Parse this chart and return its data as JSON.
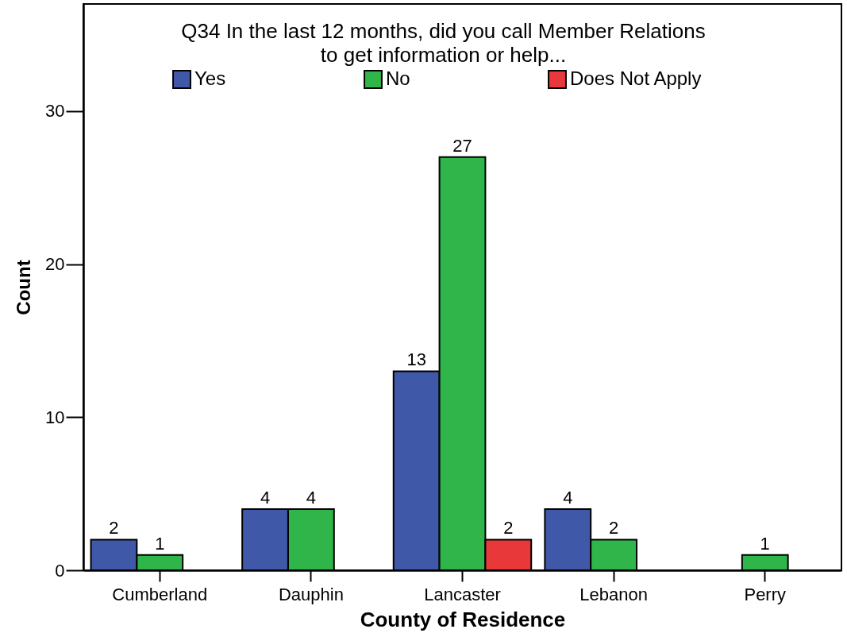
{
  "chart_data": {
    "type": "bar",
    "title": "Q34 In the last 12 months, did you call Member Relations to get information or help...",
    "xlabel": "County of Residence",
    "ylabel": "Count",
    "categories": [
      "Cumberland",
      "Dauphin",
      "Lancaster",
      "Lebanon",
      "Perry"
    ],
    "series": [
      {
        "name": "Yes",
        "color": "#3f58a8",
        "values": [
          2,
          4,
          13,
          4,
          null
        ]
      },
      {
        "name": "No",
        "color": "#2fb54a",
        "values": [
          1,
          4,
          27,
          2,
          1
        ]
      },
      {
        "name": "Does Not Apply",
        "color": "#e8383a",
        "values": [
          null,
          null,
          2,
          null,
          null
        ]
      }
    ],
    "ylim": [
      0,
      37
    ],
    "yticks": [
      0,
      10,
      20,
      30
    ],
    "data_labels": true,
    "legend": "top"
  }
}
